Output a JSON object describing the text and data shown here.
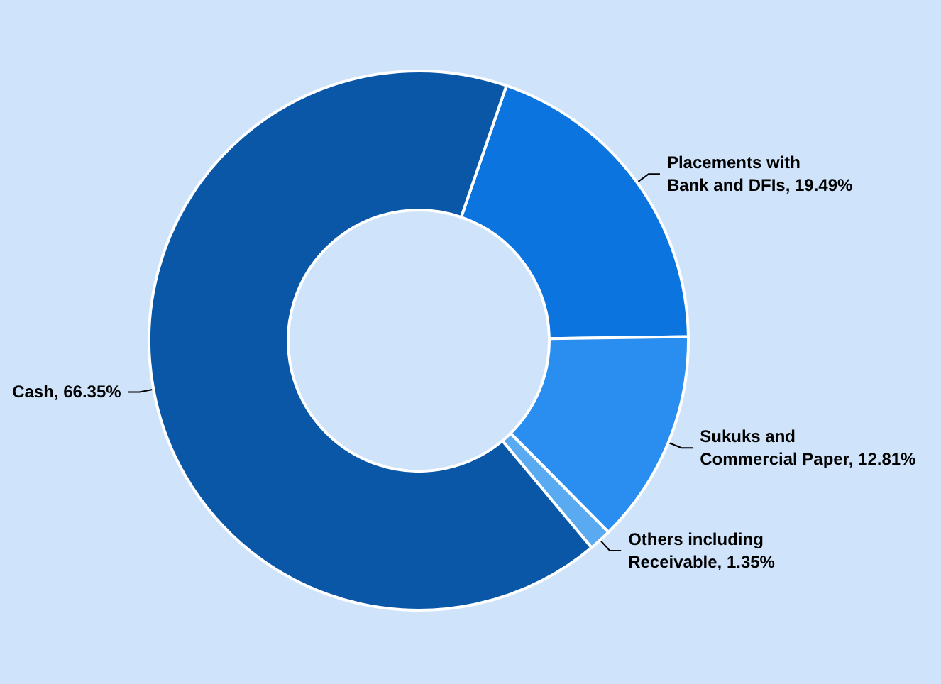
{
  "chart_data": {
    "type": "donut",
    "categories": [
      "Placements with Bank and DFIs",
      "Sukuks and Commercial Paper",
      "Others including Receivable",
      "Cash"
    ],
    "value_labels": [
      "19.49%",
      "12.81%",
      "1.35%",
      "66.35%"
    ],
    "values": [
      19.49,
      12.81,
      1.35,
      66.35
    ],
    "colors": [
      "#0b74de",
      "#2a8ef0",
      "#5aaaf2",
      "#0a57a8"
    ],
    "data_labels": true,
    "legend": false
  }
}
